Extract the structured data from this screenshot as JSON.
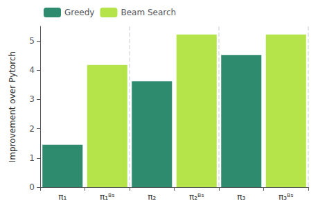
{
  "chart_data": {
    "type": "bar",
    "categories": [
      "π₁",
      "π₁ᴮˢ",
      "π₂",
      "π₂ᴮˢ",
      "π₃",
      "π₃ᴮˢ"
    ],
    "series": [
      {
        "name": "Greedy",
        "color": "#2e8b6e",
        "values": [
          1.45,
          null,
          3.62,
          null,
          4.52,
          null
        ]
      },
      {
        "name": "Beam Search",
        "color": "#b5e44a",
        "values": [
          null,
          4.18,
          null,
          5.22,
          null,
          5.22
        ]
      }
    ],
    "ylabel": "Improvement over Pytorch",
    "ylim": [
      0,
      5.5
    ],
    "yticks": [
      0,
      1,
      2,
      3,
      4,
      5
    ],
    "grid": false,
    "legend": "upper left"
  }
}
